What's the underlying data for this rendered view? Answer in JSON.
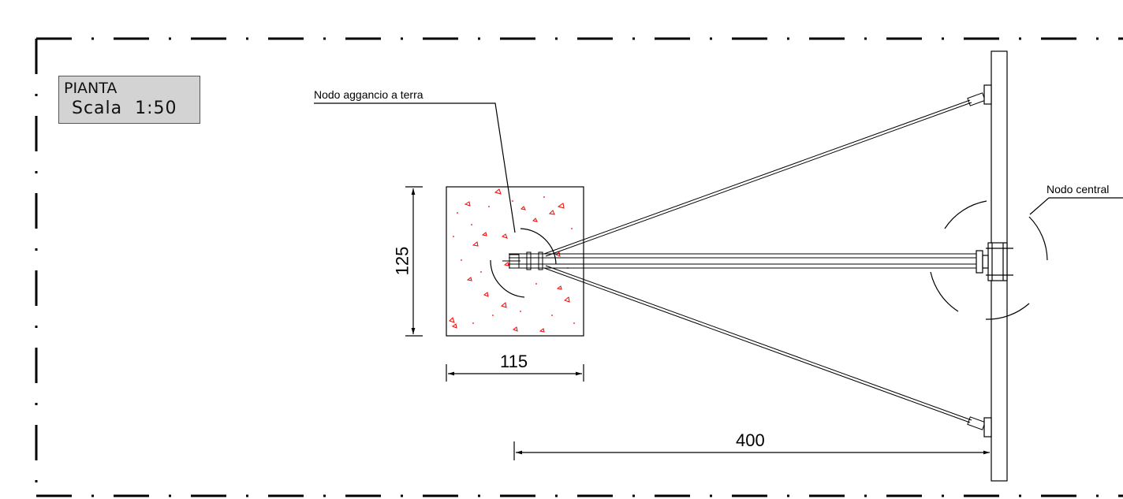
{
  "title_block": {
    "line1": "PIANTA",
    "line2": "Scala  1:50"
  },
  "callouts": {
    "ground_node": "Nodo aggancio a terra",
    "central_node": "Nodo central"
  },
  "dimensions": {
    "height": "125",
    "width": "115",
    "span": "400"
  },
  "colors": {
    "line": "#000000",
    "hatch": "#ff0000",
    "title_bg": "#d3d3d3"
  }
}
